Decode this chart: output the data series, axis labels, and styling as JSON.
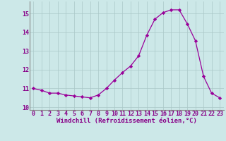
{
  "x": [
    0,
    1,
    2,
    3,
    4,
    5,
    6,
    7,
    8,
    9,
    10,
    11,
    12,
    13,
    14,
    15,
    16,
    17,
    18,
    19,
    20,
    21,
    22,
    23
  ],
  "y": [
    11.0,
    10.9,
    10.75,
    10.75,
    10.65,
    10.6,
    10.55,
    10.5,
    10.65,
    11.0,
    11.45,
    11.85,
    12.2,
    12.75,
    13.85,
    14.7,
    15.05,
    15.2,
    15.2,
    14.45,
    13.55,
    11.65,
    10.75,
    10.5
  ],
  "line_color": "#990099",
  "marker": "D",
  "markersize": 2.2,
  "linewidth": 0.9,
  "xlabel": "Windchill (Refroidissement éolien,°C)",
  "xlabel_fontsize": 6.5,
  "xtick_labels": [
    "0",
    "1",
    "2",
    "3",
    "4",
    "5",
    "6",
    "7",
    "8",
    "9",
    "10",
    "11",
    "12",
    "13",
    "14",
    "15",
    "16",
    "17",
    "18",
    "19",
    "20",
    "21",
    "22",
    "23"
  ],
  "ytick_labels": [
    "10",
    "11",
    "12",
    "13",
    "14",
    "15"
  ],
  "ylim": [
    9.85,
    15.65
  ],
  "xlim": [
    -0.5,
    23.5
  ],
  "background_color": "#cce8e8",
  "grid_color": "#aac8c8",
  "tick_fontsize": 6.0,
  "tick_color": "#880088"
}
